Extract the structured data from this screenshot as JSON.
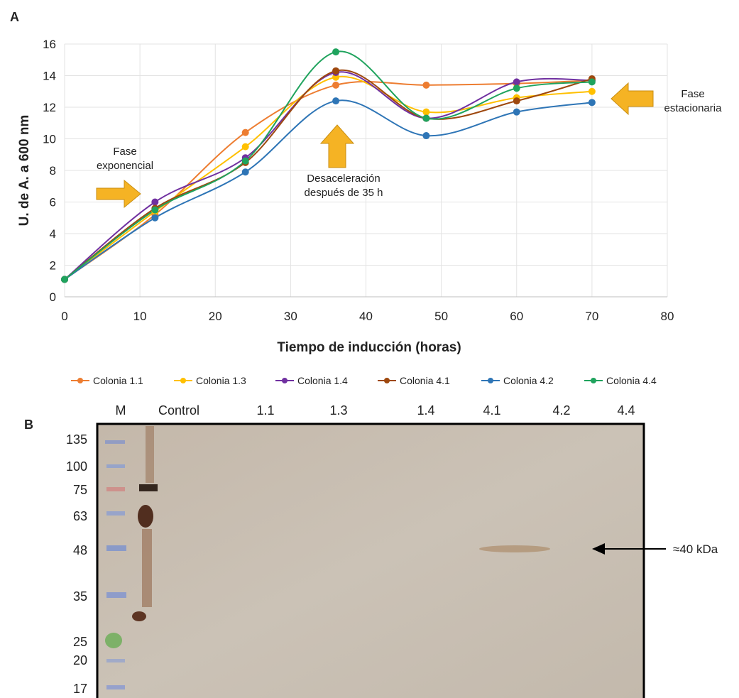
{
  "panel_labels": [
    "A",
    "B"
  ],
  "chart_data": {
    "type": "line",
    "smooth": true,
    "grid": true,
    "xlabel": "Tiempo de inducción (horas)",
    "ylabel": "U. de A. a 600 nm",
    "x": [
      0,
      12,
      24,
      36,
      48,
      60,
      70
    ],
    "xlim": [
      0,
      80
    ],
    "xticks": [
      0,
      10,
      20,
      30,
      40,
      50,
      60,
      70,
      80
    ],
    "ylim": [
      0,
      16
    ],
    "yticks": [
      0,
      2,
      4,
      6,
      8,
      10,
      12,
      14,
      16
    ],
    "series": [
      {
        "name": "Colonia 1.1",
        "color": "#ed7d31",
        "values": [
          1.1,
          5.2,
          10.4,
          13.4,
          13.4,
          13.5,
          13.7
        ]
      },
      {
        "name": "Colonia 1.3",
        "color": "#ffc000",
        "values": [
          1.1,
          5.4,
          9.5,
          13.9,
          11.7,
          12.6,
          13.0
        ]
      },
      {
        "name": "Colonia 1.4",
        "color": "#7030a0",
        "values": [
          1.1,
          6.0,
          8.8,
          14.2,
          11.3,
          13.6,
          13.7
        ]
      },
      {
        "name": "Colonia 4.1",
        "color": "#9e480e",
        "values": [
          1.1,
          5.6,
          8.5,
          14.3,
          11.3,
          12.4,
          13.8
        ]
      },
      {
        "name": "Colonia 4.2",
        "color": "#2e75b6",
        "values": [
          1.1,
          5.0,
          7.9,
          12.4,
          10.2,
          11.7,
          12.3
        ]
      },
      {
        "name": "Colonia 4.4",
        "color": "#1fa35d",
        "values": [
          1.1,
          5.5,
          8.6,
          15.5,
          11.3,
          13.2,
          13.6
        ]
      }
    ],
    "annotations": [
      {
        "lines": [
          "Fase",
          "exponencial"
        ]
      },
      {
        "lines": [
          "Desaceleración",
          "después de 35 h"
        ]
      },
      {
        "lines": [
          "Fase",
          "estacionaria"
        ]
      }
    ]
  },
  "blot": {
    "lanes": [
      "M",
      "Control",
      "1.1",
      "1.3",
      "1.4",
      "4.1",
      "4.2",
      "4.4"
    ],
    "marker_sizes": [
      135,
      100,
      75,
      63,
      48,
      35,
      25,
      20,
      17
    ],
    "annotation": "≈40 kDa"
  }
}
